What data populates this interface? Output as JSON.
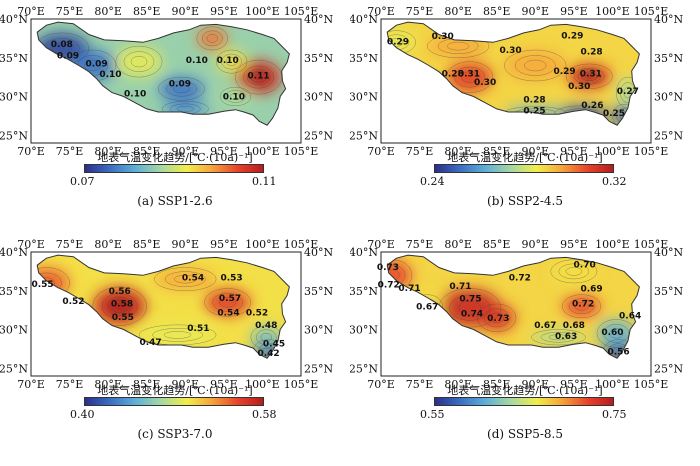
{
  "axes": {
    "x_ticks": [
      "70°E",
      "75°E",
      "80°E",
      "85°E",
      "90°E",
      "95°E",
      "100°E",
      "105°E"
    ],
    "y_ticks_left": [
      "40°N",
      "35°N",
      "30°N",
      "25°N"
    ],
    "y_ticks_right": [
      "40°N",
      "35°N",
      "30°N",
      "25°N"
    ]
  },
  "colorbar_title": "地表气温变化趋势/[℃·(10a)⁻¹]",
  "colors": {
    "scale": [
      "#2b2f8c",
      "#3b6fc2",
      "#5fb0d8",
      "#a8d8a0",
      "#f2ee4a",
      "#f6a33a",
      "#e8432a",
      "#b51d1d"
    ],
    "land_outside": "#ffffff",
    "boundary": "#333333"
  },
  "panels": [
    {
      "caption": "(a) SSP1-2.6",
      "cb_min": "0.07",
      "cb_max": "0.11",
      "labels": [
        {
          "text": "0.08",
          "lon": 74.0,
          "lat": 36.4
        },
        {
          "text": "0.09",
          "lon": 74.8,
          "lat": 34.9
        },
        {
          "text": "0.09",
          "lon": 78.5,
          "lat": 33.9
        },
        {
          "text": "0.10",
          "lon": 80.3,
          "lat": 32.5
        },
        {
          "text": "0.09",
          "lon": 89.3,
          "lat": 31.3
        },
        {
          "text": "0.10",
          "lon": 91.5,
          "lat": 34.3
        },
        {
          "text": "0.10",
          "lon": 95.5,
          "lat": 34.3
        },
        {
          "text": "0.11",
          "lon": 99.5,
          "lat": 32.3
        },
        {
          "text": "0.10",
          "lon": 83.5,
          "lat": 30.0
        },
        {
          "text": "0.10",
          "lon": 96.3,
          "lat": 29.6
        }
      ]
    },
    {
      "caption": "(b) SSP2-4.5",
      "cb_min": "0.24",
      "cb_max": "0.32",
      "labels": [
        {
          "text": "0.29",
          "lon": 72.2,
          "lat": 36.7
        },
        {
          "text": "0.30",
          "lon": 78.0,
          "lat": 37.4
        },
        {
          "text": "0.30",
          "lon": 86.8,
          "lat": 35.6
        },
        {
          "text": "0.29",
          "lon": 94.8,
          "lat": 37.5
        },
        {
          "text": "0.28",
          "lon": 97.3,
          "lat": 35.4
        },
        {
          "text": "0.28",
          "lon": 79.3,
          "lat": 32.6
        },
        {
          "text": "0.31",
          "lon": 81.4,
          "lat": 32.6
        },
        {
          "text": "0.30",
          "lon": 83.5,
          "lat": 31.5
        },
        {
          "text": "0.29",
          "lon": 93.8,
          "lat": 32.9
        },
        {
          "text": "0.31",
          "lon": 97.2,
          "lat": 32.6
        },
        {
          "text": "0.30",
          "lon": 95.7,
          "lat": 31.0
        },
        {
          "text": "0.28",
          "lon": 89.9,
          "lat": 29.2
        },
        {
          "text": "0.25",
          "lon": 89.9,
          "lat": 27.8
        },
        {
          "text": "0.26",
          "lon": 97.4,
          "lat": 28.5
        },
        {
          "text": "0.25",
          "lon": 100.2,
          "lat": 27.5
        },
        {
          "text": "0.27",
          "lon": 102.0,
          "lat": 30.3
        }
      ]
    },
    {
      "caption": "(c) SSP3-7.0",
      "cb_min": "0.40",
      "cb_max": "0.58",
      "labels": [
        {
          "text": "0.55",
          "lon": 71.5,
          "lat": 35.5
        },
        {
          "text": "0.52",
          "lon": 75.5,
          "lat": 33.3
        },
        {
          "text": "0.56",
          "lon": 81.5,
          "lat": 34.6
        },
        {
          "text": "0.58",
          "lon": 81.8,
          "lat": 33.0
        },
        {
          "text": "0.55",
          "lon": 81.9,
          "lat": 31.2
        },
        {
          "text": "0.54",
          "lon": 91.0,
          "lat": 36.3
        },
        {
          "text": "0.53",
          "lon": 96.0,
          "lat": 36.3
        },
        {
          "text": "0.57",
          "lon": 95.8,
          "lat": 33.7
        },
        {
          "text": "0.54",
          "lon": 95.6,
          "lat": 31.8
        },
        {
          "text": "0.52",
          "lon": 99.3,
          "lat": 31.8
        },
        {
          "text": "0.48",
          "lon": 100.5,
          "lat": 30.2
        },
        {
          "text": "0.51",
          "lon": 91.7,
          "lat": 29.8
        },
        {
          "text": "0.47",
          "lon": 85.5,
          "lat": 28.0
        },
        {
          "text": "0.45",
          "lon": 101.5,
          "lat": 27.8
        },
        {
          "text": "0.42",
          "lon": 100.8,
          "lat": 26.6
        }
      ]
    },
    {
      "caption": "(d) SSP5-8.5",
      "cb_min": "0.55",
      "cb_max": "0.75",
      "labels": [
        {
          "text": "0.73",
          "lon": 70.9,
          "lat": 37.7
        },
        {
          "text": "0.72",
          "lon": 71.0,
          "lat": 35.4
        },
        {
          "text": "0.71",
          "lon": 73.7,
          "lat": 35.0
        },
        {
          "text": "0.67",
          "lon": 76.0,
          "lat": 32.6
        },
        {
          "text": "0.71",
          "lon": 80.3,
          "lat": 35.2
        },
        {
          "text": "0.75",
          "lon": 81.6,
          "lat": 33.6
        },
        {
          "text": "0.74",
          "lon": 81.8,
          "lat": 31.7
        },
        {
          "text": "0.73",
          "lon": 85.2,
          "lat": 31.1
        },
        {
          "text": "0.72",
          "lon": 88.0,
          "lat": 36.3
        },
        {
          "text": "0.70",
          "lon": 96.4,
          "lat": 38.0
        },
        {
          "text": "0.69",
          "lon": 97.3,
          "lat": 34.9
        },
        {
          "text": "0.72",
          "lon": 96.2,
          "lat": 33.0
        },
        {
          "text": "0.67",
          "lon": 91.3,
          "lat": 30.2
        },
        {
          "text": "0.68",
          "lon": 95.0,
          "lat": 30.2
        },
        {
          "text": "0.63",
          "lon": 94.0,
          "lat": 28.8
        },
        {
          "text": "0.64",
          "lon": 102.3,
          "lat": 31.4
        },
        {
          "text": "0.60",
          "lon": 100.0,
          "lat": 29.3
        },
        {
          "text": "0.56",
          "lon": 100.8,
          "lat": 26.8
        }
      ]
    }
  ]
}
